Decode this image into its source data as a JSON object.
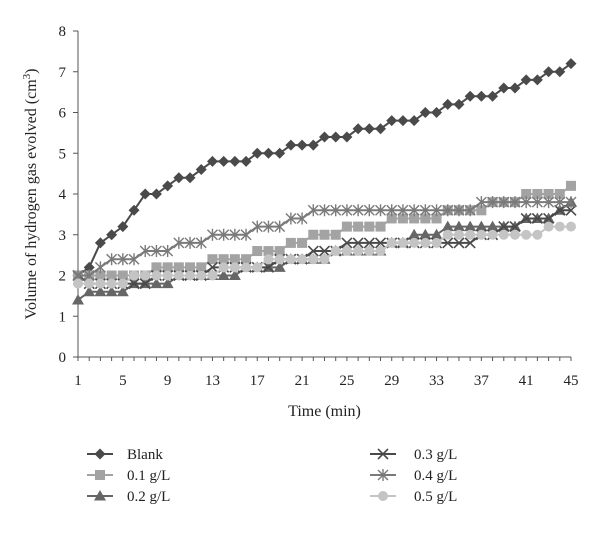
{
  "chart_data": {
    "type": "line",
    "xlabel": "Time (min)",
    "ylabel": "Volume of hydrogen gas evolved (cm",
    "ylabel_sup": "3",
    "ylabel_close": ")",
    "xlim": [
      1,
      45
    ],
    "ylim": [
      0,
      8
    ],
    "x_ticks": [
      1,
      5,
      9,
      13,
      17,
      21,
      25,
      29,
      33,
      37,
      41,
      45
    ],
    "y_ticks": [
      0,
      1,
      2,
      3,
      4,
      5,
      6,
      7,
      8
    ],
    "grid": false,
    "legend_position": "bottom",
    "x": [
      1,
      2,
      3,
      4,
      5,
      6,
      7,
      8,
      9,
      10,
      11,
      12,
      13,
      14,
      15,
      16,
      17,
      18,
      19,
      20,
      21,
      22,
      23,
      24,
      25,
      26,
      27,
      28,
      29,
      30,
      31,
      32,
      33,
      34,
      35,
      36,
      37,
      38,
      39,
      40,
      41,
      42,
      43,
      44,
      45
    ],
    "series": [
      {
        "name": "Blank",
        "marker": "diamond",
        "color": "#4a4a4a",
        "values": [
          2.0,
          2.2,
          2.8,
          3.0,
          3.2,
          3.6,
          4.0,
          4.0,
          4.2,
          4.4,
          4.4,
          4.6,
          4.8,
          4.8,
          4.8,
          4.8,
          5.0,
          5.0,
          5.0,
          5.2,
          5.2,
          5.2,
          5.4,
          5.4,
          5.4,
          5.6,
          5.6,
          5.6,
          5.8,
          5.8,
          5.8,
          6.0,
          6.0,
          6.2,
          6.2,
          6.4,
          6.4,
          6.4,
          6.6,
          6.6,
          6.8,
          6.8,
          7.0,
          7.0,
          7.2
        ]
      },
      {
        "name": "0.1 g/L",
        "marker": "square",
        "color": "#a3a3a3",
        "values": [
          2.0,
          2.0,
          2.0,
          2.0,
          2.0,
          2.0,
          2.0,
          2.2,
          2.2,
          2.2,
          2.2,
          2.2,
          2.4,
          2.4,
          2.4,
          2.4,
          2.6,
          2.6,
          2.6,
          2.8,
          2.8,
          3.0,
          3.0,
          3.0,
          3.2,
          3.2,
          3.2,
          3.2,
          3.4,
          3.4,
          3.4,
          3.4,
          3.4,
          3.6,
          3.6,
          3.6,
          3.6,
          3.8,
          3.8,
          3.8,
          4.0,
          4.0,
          4.0,
          4.0,
          4.2
        ]
      },
      {
        "name": "0.2 g/L",
        "marker": "triangle",
        "color": "#666666",
        "values": [
          1.4,
          1.6,
          1.6,
          1.6,
          1.6,
          1.8,
          1.8,
          1.8,
          1.8,
          2.0,
          2.0,
          2.0,
          2.0,
          2.0,
          2.0,
          2.2,
          2.2,
          2.2,
          2.2,
          2.4,
          2.4,
          2.4,
          2.4,
          2.6,
          2.6,
          2.6,
          2.6,
          2.6,
          2.8,
          2.8,
          3.0,
          3.0,
          3.0,
          3.2,
          3.2,
          3.2,
          3.2,
          3.2,
          3.2,
          3.2,
          3.4,
          3.4,
          3.4,
          3.6,
          3.8
        ]
      },
      {
        "name": "0.3 g/L",
        "marker": "x",
        "color": "#4a4a4a",
        "values": [
          2.0,
          1.8,
          1.8,
          1.8,
          1.8,
          1.8,
          1.8,
          2.0,
          2.0,
          2.0,
          2.0,
          2.0,
          2.2,
          2.2,
          2.2,
          2.2,
          2.2,
          2.2,
          2.4,
          2.4,
          2.4,
          2.6,
          2.6,
          2.6,
          2.8,
          2.8,
          2.8,
          2.8,
          2.8,
          2.8,
          2.8,
          2.8,
          2.8,
          2.8,
          2.8,
          2.8,
          3.0,
          3.0,
          3.2,
          3.2,
          3.4,
          3.4,
          3.4,
          3.6,
          3.6
        ]
      },
      {
        "name": "0.4 g/L",
        "marker": "asterisk",
        "color": "#7a7a7a",
        "values": [
          2.0,
          2.0,
          2.2,
          2.4,
          2.4,
          2.4,
          2.6,
          2.6,
          2.6,
          2.8,
          2.8,
          2.8,
          3.0,
          3.0,
          3.0,
          3.0,
          3.2,
          3.2,
          3.2,
          3.4,
          3.4,
          3.6,
          3.6,
          3.6,
          3.6,
          3.6,
          3.6,
          3.6,
          3.6,
          3.6,
          3.6,
          3.6,
          3.6,
          3.6,
          3.6,
          3.6,
          3.8,
          3.8,
          3.8,
          3.8,
          3.8,
          3.8,
          3.8,
          3.8,
          3.8
        ]
      },
      {
        "name": "0.5 g/L",
        "marker": "circle",
        "color": "#c4c4c4",
        "values": [
          1.8,
          1.8,
          1.8,
          1.8,
          1.8,
          2.0,
          2.0,
          2.0,
          2.0,
          2.0,
          2.0,
          2.0,
          2.0,
          2.2,
          2.2,
          2.2,
          2.2,
          2.4,
          2.4,
          2.4,
          2.4,
          2.4,
          2.4,
          2.6,
          2.6,
          2.6,
          2.6,
          2.6,
          2.8,
          2.8,
          2.8,
          2.8,
          2.8,
          3.0,
          3.0,
          3.0,
          3.0,
          3.0,
          3.0,
          3.0,
          3.0,
          3.0,
          3.2,
          3.2,
          3.2
        ]
      }
    ]
  }
}
